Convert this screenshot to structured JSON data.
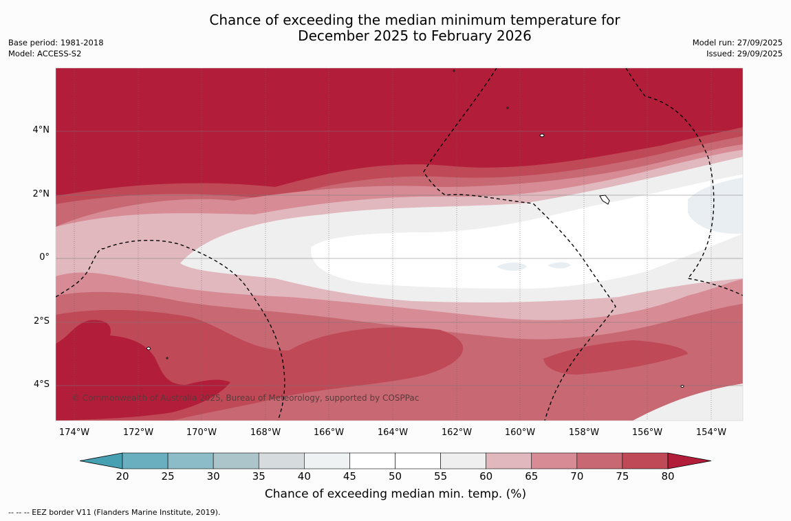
{
  "title_line1": "Chance of exceeding the median minimum temperature for",
  "title_line2": "December 2025 to February 2026",
  "meta_left": {
    "line1": "Base period: 1981-2018",
    "line2": "Model: ACCESS-S2"
  },
  "meta_right": {
    "line1": "Model run: 27/09/2025",
    "line2": "Issued: 29/09/2025"
  },
  "longitude_ticks": [
    "174°W",
    "172°W",
    "170°W",
    "168°W",
    "166°W",
    "164°W",
    "162°W",
    "160°W",
    "158°W",
    "156°W",
    "154°W"
  ],
  "latitude_ticks": [
    "4°N",
    "2°N",
    "0°",
    "2°S",
    "4°S"
  ],
  "copyright": "© Commonwealth of Australia 2025, Bureau of Meteorology, supported by COSPPac",
  "colorbar": {
    "ticks": [
      "20",
      "25",
      "30",
      "35",
      "40",
      "45",
      "50",
      "55",
      "60",
      "65",
      "70",
      "75",
      "80"
    ],
    "colors": [
      "#47a0b2",
      "#6aafbf",
      "#8cbcc7",
      "#acc5cb",
      "#d6dcdd",
      "#eef2f3",
      "#ffffff",
      "#ffffff",
      "#efefef",
      "#e2b8bf",
      "#d68b95",
      "#c86873",
      "#c04957",
      "#b21e3a"
    ],
    "label": "Chance of exceeding median min. temp. (%)"
  },
  "eez_legend": "--  --  -- EEZ border V11 (Flanders Marine Institute, 2019)."
}
